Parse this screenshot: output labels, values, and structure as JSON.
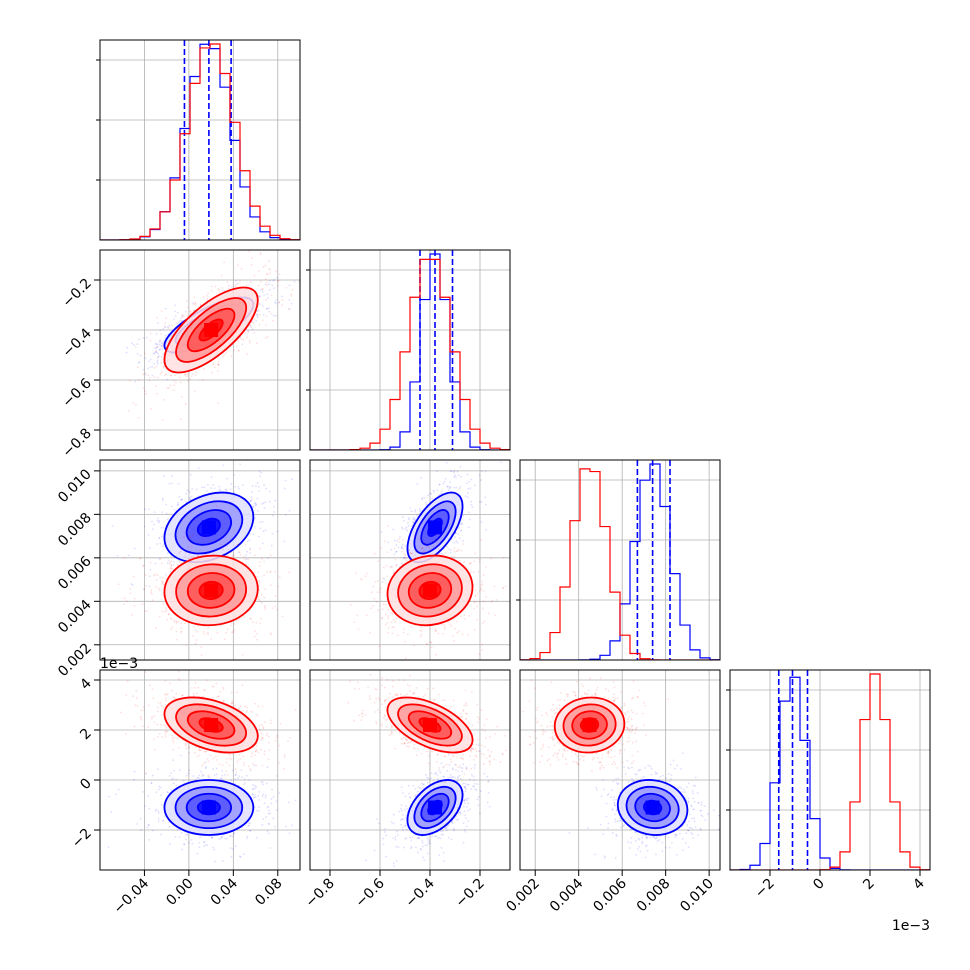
{
  "chart_data": {
    "type": "corner",
    "parameters": [
      {
        "range": [
          -0.08,
          0.1
        ],
        "ticks": [
          -0.04,
          0.0,
          0.04,
          0.08
        ],
        "tick_labels": [
          "−0.04",
          "0.00",
          "0.04",
          "0.08"
        ],
        "offset": ""
      },
      {
        "range": [
          -0.88,
          -0.08
        ],
        "ticks": [
          -0.8,
          -0.6,
          -0.4,
          -0.2
        ],
        "tick_labels": [
          "−0.8",
          "−0.6",
          "−0.4",
          "−0.2"
        ],
        "offset": ""
      },
      {
        "range": [
          0.0013,
          0.0105
        ],
        "ticks": [
          0.002,
          0.004,
          0.006,
          0.008,
          0.01
        ],
        "tick_labels": [
          "0.002",
          "0.004",
          "0.006",
          "0.008",
          "0.010"
        ],
        "offset": ""
      },
      {
        "range": [
          -3.6,
          4.4
        ],
        "ticks": [
          -2,
          0,
          2,
          4
        ],
        "tick_labels": [
          "−2",
          "0",
          "2",
          "4"
        ],
        "offset": "1e−3"
      }
    ],
    "series": [
      {
        "color": "#0000ff",
        "mean": [
          0.018,
          -0.38,
          0.0074,
          -1.1
        ],
        "std": [
          0.02,
          0.055,
          0.0008,
          0.55
        ],
        "corr": [
          [
            1,
            0.75,
            0.3,
            0.0
          ],
          [
            0.75,
            1,
            0.6,
            0.45
          ],
          [
            0.3,
            0.6,
            1,
            -0.1
          ],
          [
            0.0,
            0.45,
            -0.1,
            1
          ]
        ],
        "quantiles": [
          [
            -0.004,
            0.018,
            0.038
          ],
          [
            -0.44,
            -0.38,
            -0.31
          ],
          [
            0.0067,
            0.0074,
            0.0082
          ],
          [
            -1.65,
            -1.1,
            -0.5
          ]
        ]
      },
      {
        "color": "#ff0000",
        "mean": [
          0.02,
          -0.4,
          0.0045,
          2.2
        ],
        "std": [
          0.021,
          0.085,
          0.0008,
          0.55
        ],
        "corr": [
          [
            1,
            0.7,
            0.05,
            -0.4
          ],
          [
            0.7,
            1,
            0.1,
            -0.55
          ],
          [
            0.05,
            0.1,
            1,
            0.05
          ],
          [
            -0.4,
            -0.55,
            0.05,
            1
          ]
        ],
        "quantiles": []
      }
    ],
    "grid": true,
    "contour_levels": [
      0.5,
      1.0,
      1.5,
      2.0
    ],
    "histogram_bins": 20,
    "quantile_style": "dashed"
  }
}
